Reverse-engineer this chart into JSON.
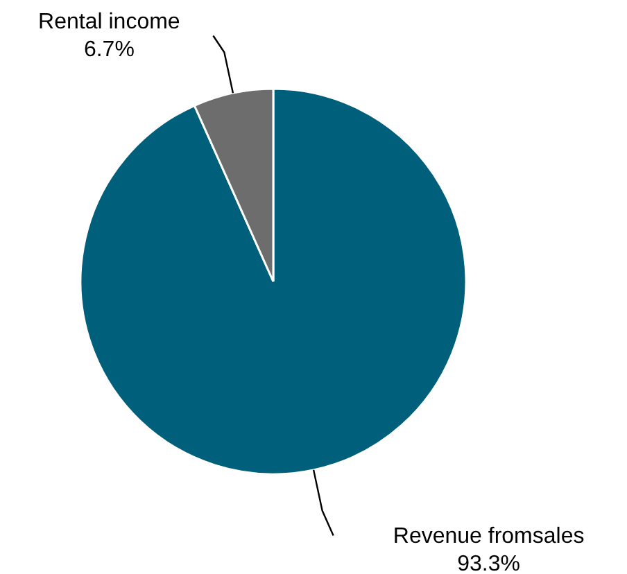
{
  "chart_data": {
    "type": "pie",
    "categories": [
      "Revenue fromsales",
      "Rental income"
    ],
    "values": [
      93.3,
      6.7
    ],
    "colors": [
      "#005f7a",
      "#6d6d6d"
    ],
    "value_labels": [
      "93.3%",
      "6.7%"
    ]
  }
}
